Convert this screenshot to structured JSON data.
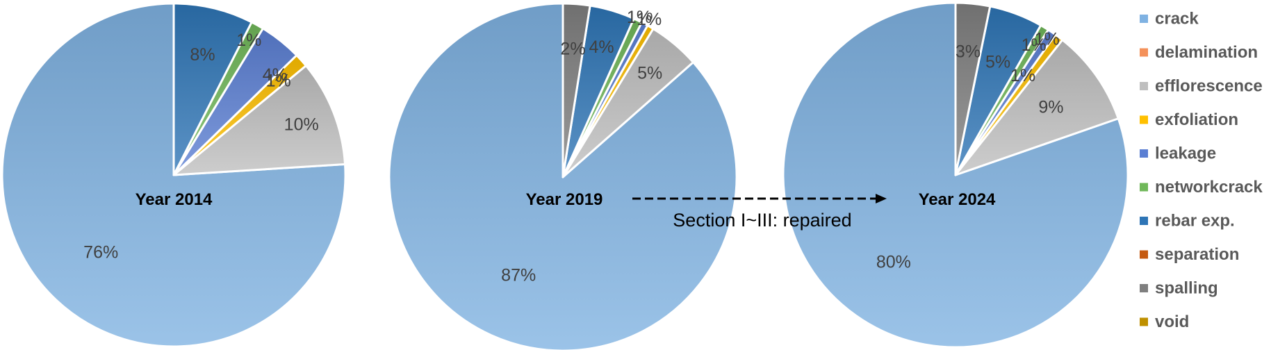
{
  "chart_data": {
    "type": "pie",
    "categories": [
      "crack",
      "delamination",
      "efflorescence",
      "exfoliation",
      "leakage",
      "networkcrack",
      "rebar exp.",
      "separation",
      "spalling",
      "void"
    ],
    "colors": {
      "crack": "#7fb2e2",
      "delamination": "#f4915a",
      "efflorescence": "#bfbfbf",
      "exfoliation": "#ffc000",
      "leakage": "#5b7fd3",
      "networkcrack": "#70b85a",
      "rebar exp.": "#2e75b6",
      "separation": "#c55a11",
      "spalling": "#7f7f7f",
      "void": "#bf9000"
    },
    "pies": [
      {
        "title": "Year 2014",
        "slices": [
          {
            "category": "crack",
            "value": 76,
            "label": "76%"
          },
          {
            "category": "delamination",
            "value": 0,
            "label": ""
          },
          {
            "category": "efflorescence",
            "value": 10,
            "label": "10%"
          },
          {
            "category": "exfoliation",
            "value": 1.3,
            "label": "1%"
          },
          {
            "category": "leakage",
            "value": 4,
            "label": "4%"
          },
          {
            "category": "networkcrack",
            "value": 1.2,
            "label": "1%"
          },
          {
            "category": "rebar exp.",
            "value": 7.5,
            "label": "8%"
          },
          {
            "category": "separation",
            "value": 0,
            "label": ""
          },
          {
            "category": "spalling",
            "value": 0,
            "label": ""
          },
          {
            "category": "void",
            "value": 0,
            "label": ""
          }
        ]
      },
      {
        "title": "Year 2019",
        "slices": [
          {
            "category": "crack",
            "value": 86.5,
            "label": "87%"
          },
          {
            "category": "delamination",
            "value": 0,
            "label": ""
          },
          {
            "category": "efflorescence",
            "value": 4.8,
            "label": "5%"
          },
          {
            "category": "exfoliation",
            "value": 0.6,
            "label": "1%"
          },
          {
            "category": "leakage",
            "value": 0.6,
            "label": ""
          },
          {
            "category": "networkcrack",
            "value": 0.8,
            "label": "1%"
          },
          {
            "category": "rebar exp.",
            "value": 4.2,
            "label": "4%"
          },
          {
            "category": "separation",
            "value": 0,
            "label": ""
          },
          {
            "category": "spalling",
            "value": 2.5,
            "label": "2%"
          },
          {
            "category": "void",
            "value": 0,
            "label": ""
          }
        ]
      },
      {
        "title": "Year 2024",
        "slices": [
          {
            "category": "crack",
            "value": 80,
            "label": "80%"
          },
          {
            "category": "delamination",
            "value": 0,
            "label": ""
          },
          {
            "category": "efflorescence",
            "value": 9,
            "label": "9%"
          },
          {
            "category": "exfoliation",
            "value": 0.8,
            "label": "1%"
          },
          {
            "category": "leakage",
            "value": 0.8,
            "label": "1%"
          },
          {
            "category": "networkcrack",
            "value": 0.8,
            "label": "1%"
          },
          {
            "category": "rebar exp.",
            "value": 5,
            "label": "5%"
          },
          {
            "category": "separation",
            "value": 0,
            "label": ""
          },
          {
            "category": "spalling",
            "value": 3.2,
            "label": "3%"
          },
          {
            "category": "void",
            "value": 0,
            "label": ""
          }
        ]
      }
    ],
    "annotation": {
      "text": "Section I~III: repaired",
      "arrow": "Year 2019 → Year 2024"
    },
    "legend": {
      "placement": "right",
      "entries": [
        "crack",
        "delamination",
        "efflorescence",
        "exfoliation",
        "leakage",
        "networkcrack",
        "rebar exp.",
        "separation",
        "spalling",
        "void"
      ]
    }
  }
}
